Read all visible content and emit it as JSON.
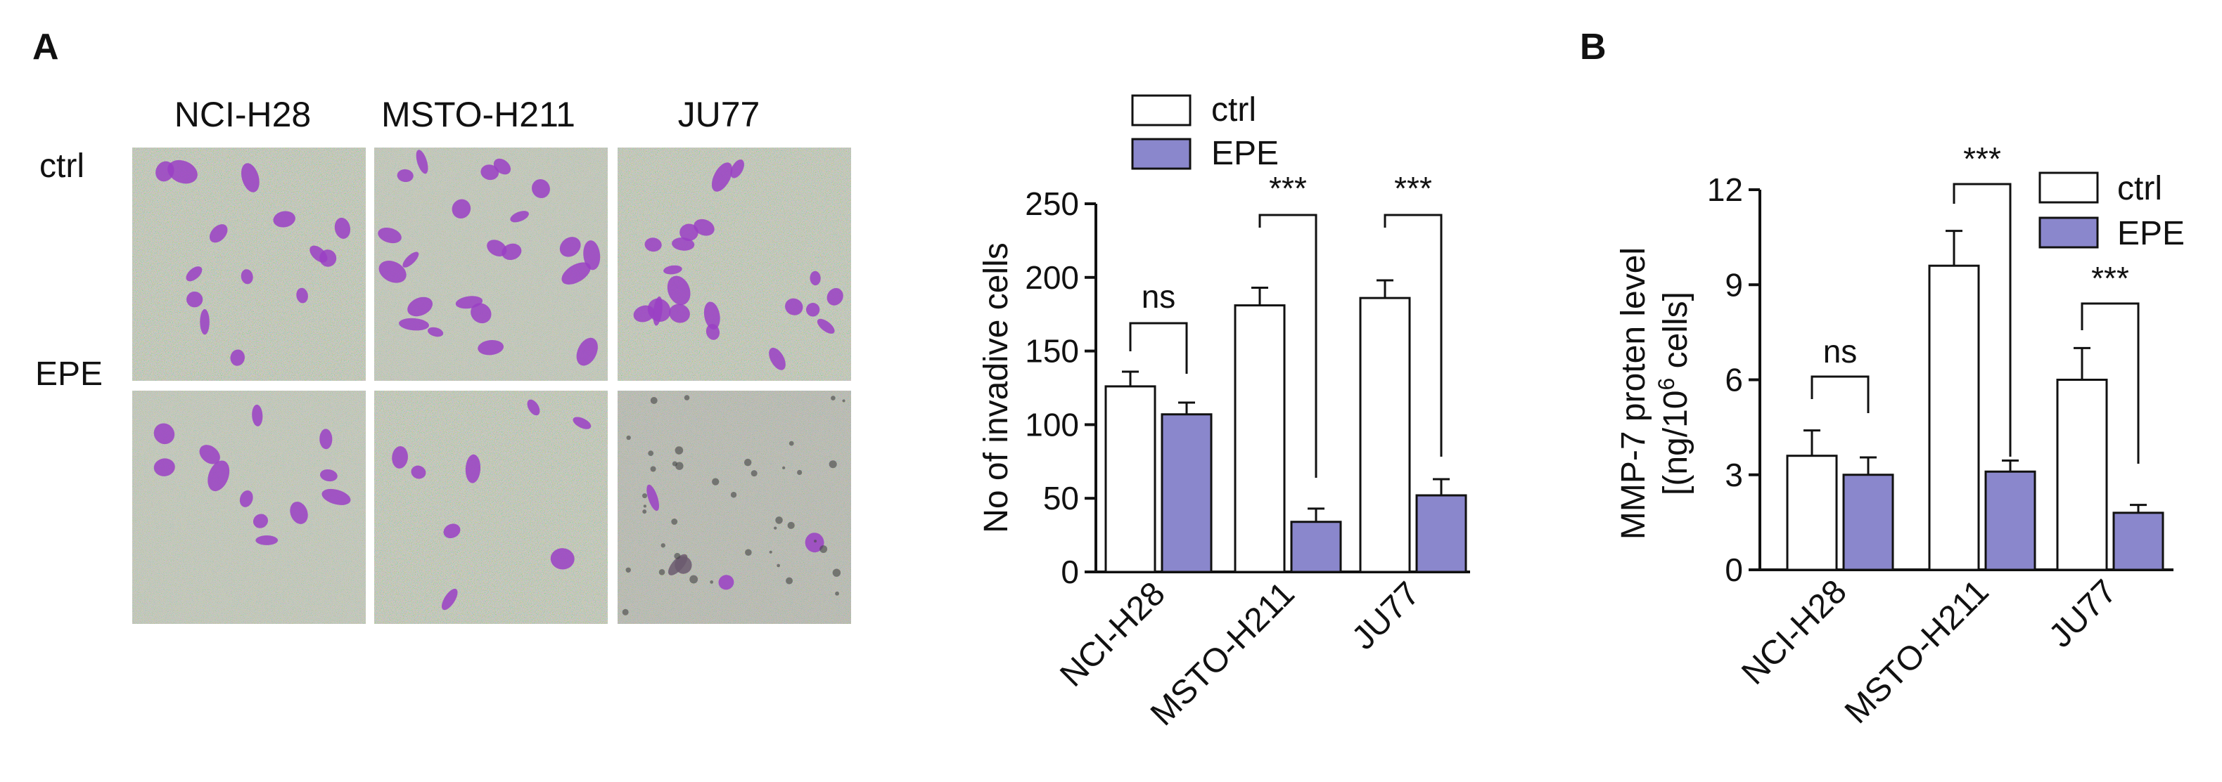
{
  "panels": {
    "a_label": "A",
    "b_label": "B"
  },
  "micrographs": {
    "columns": [
      "NCI-H28",
      "MSTO-H211",
      "JU77"
    ],
    "rows": [
      "ctrl",
      "EPE"
    ],
    "stain_color": "#9a3fc4"
  },
  "legend": {
    "items": [
      {
        "label": "ctrl",
        "fill": "#ffffff"
      },
      {
        "label": "EPE",
        "fill": "#8a87cc"
      }
    ]
  },
  "chart_data": [
    {
      "type": "bar",
      "ylabel": "No of invadive cells",
      "ylim": [
        0,
        250
      ],
      "yticks": [
        0,
        50,
        100,
        150,
        200,
        250
      ],
      "categories": [
        "NCI-H28",
        "MSTO-H211",
        "JU77"
      ],
      "series": [
        {
          "name": "ctrl",
          "values": [
            126,
            181,
            186
          ],
          "errors": [
            10,
            12,
            12
          ]
        },
        {
          "name": "EPE",
          "values": [
            107,
            34,
            52
          ],
          "errors": [
            8,
            9,
            11
          ]
        }
      ],
      "significance": [
        "ns",
        "***",
        "***"
      ],
      "legend_position": "top"
    },
    {
      "type": "bar",
      "ylabel": "MMP-7 proten level",
      "ylabel2_prefix": "[(ng/10",
      "ylabel2_sup": "6",
      "ylabel2_suffix": " cells]",
      "ylim": [
        0,
        12
      ],
      "yticks": [
        0,
        3,
        6,
        9,
        12
      ],
      "categories": [
        "NCI-H28",
        "MSTO-H211",
        "JU77"
      ],
      "series": [
        {
          "name": "ctrl",
          "values": [
            3.6,
            9.6,
            6.0
          ],
          "errors": [
            0.8,
            1.1,
            1.0
          ]
        },
        {
          "name": "EPE",
          "values": [
            3.0,
            3.1,
            1.8
          ],
          "errors": [
            0.55,
            0.35,
            0.25
          ]
        }
      ],
      "significance": [
        "ns",
        "***",
        "***"
      ],
      "legend_position": "top-right"
    }
  ]
}
